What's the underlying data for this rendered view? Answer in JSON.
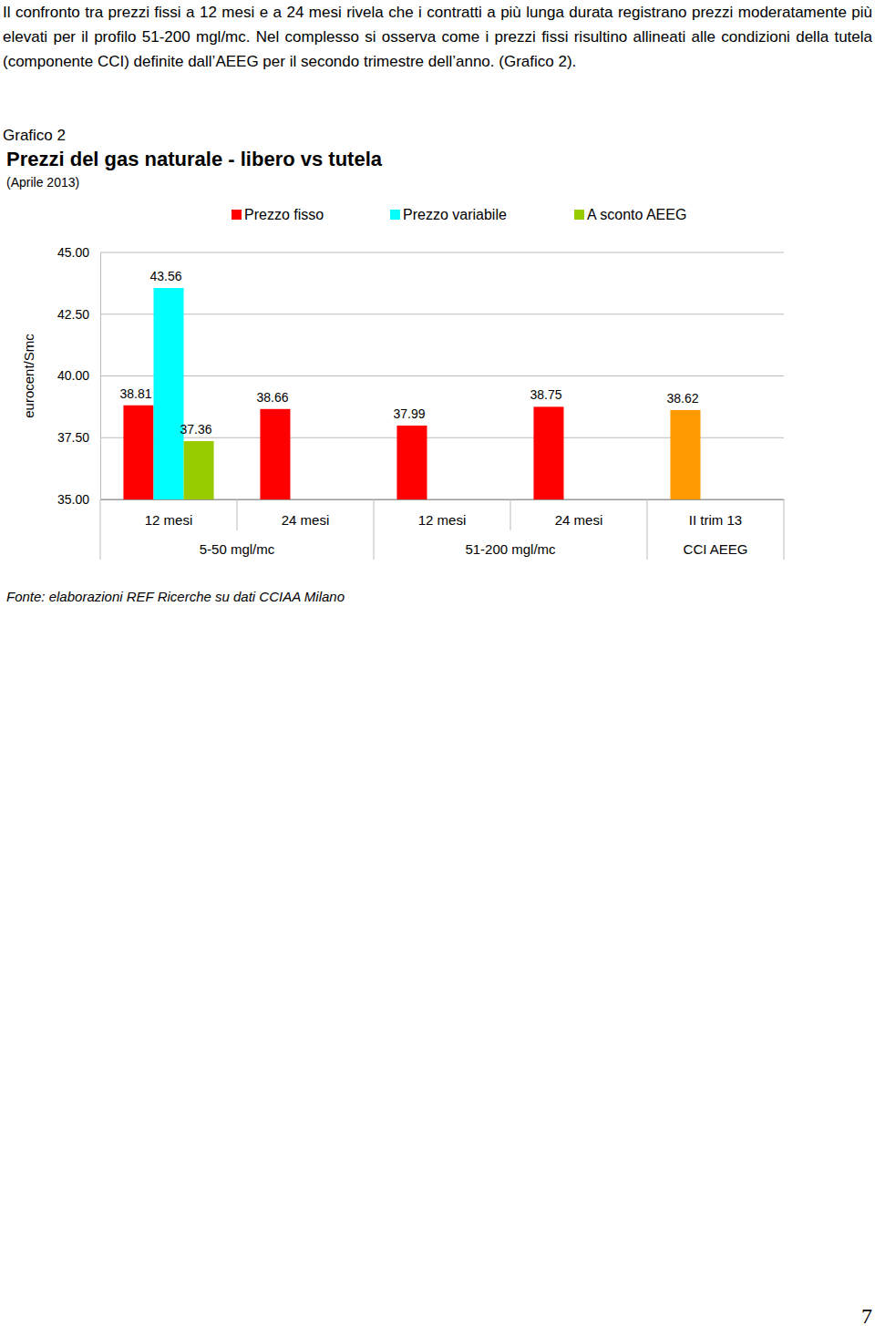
{
  "text": {
    "paragraph": "Il confronto tra prezzi fissi a 12 mesi e a 24 mesi rivela che i contratti a più lunga durata registrano prezzi moderatamente più elevati per il profilo 51-200 mgl/mc. Nel complesso si osserva come i prezzi fissi risultino allineati alle condizioni della tutela (componente CCI) definite dall’AEEG per il secondo trimestre dell’anno. (Grafico 2).",
    "figure_label": "Grafico 2",
    "source": "Fonte: elaborazioni REF Ricerche su dati CCIAA Milano",
    "page_number": "7"
  },
  "chart_data": {
    "type": "bar",
    "title": "Prezzi del gas naturale - libero vs tutela",
    "subtitle": "(Aprile 2013)",
    "y_label": "eurocent/Smc",
    "categories": [
      "12 mesi",
      "24 mesi",
      "12 mesi",
      "24 mesi",
      "II trim 13"
    ],
    "groups": [
      {
        "label": "5-50 mgl/mc",
        "size": 2
      },
      {
        "label": "51-200 mgl/mc",
        "size": 2
      },
      {
        "label": "CCI AEEG",
        "size": 1
      }
    ],
    "series": [
      {
        "name": "Prezzo fisso",
        "color": "#ff0000",
        "colors": [
          "#ff0000",
          "#ff0000",
          "#ff0000",
          "#ff0000",
          "#ff9900"
        ],
        "values": [
          38.81,
          38.66,
          37.99,
          38.75,
          38.62
        ]
      },
      {
        "name": "Prezzo variabile",
        "color": "#00ffff",
        "values": [
          43.56,
          null,
          null,
          null,
          null
        ]
      },
      {
        "name": "A sconto AEEG",
        "color": "#99cc00",
        "values": [
          37.36,
          null,
          null,
          null,
          null
        ]
      }
    ],
    "ylim": [
      35,
      45
    ],
    "yticks": [
      {
        "value": 35,
        "label": "35.00"
      },
      {
        "value": 37.5,
        "label": "37.50"
      },
      {
        "value": 40,
        "label": "40.00"
      },
      {
        "value": 42.5,
        "label": "42.50"
      },
      {
        "value": 45,
        "label": "45.00"
      }
    ],
    "grid": true,
    "legend": "top",
    "data_labels": true
  }
}
